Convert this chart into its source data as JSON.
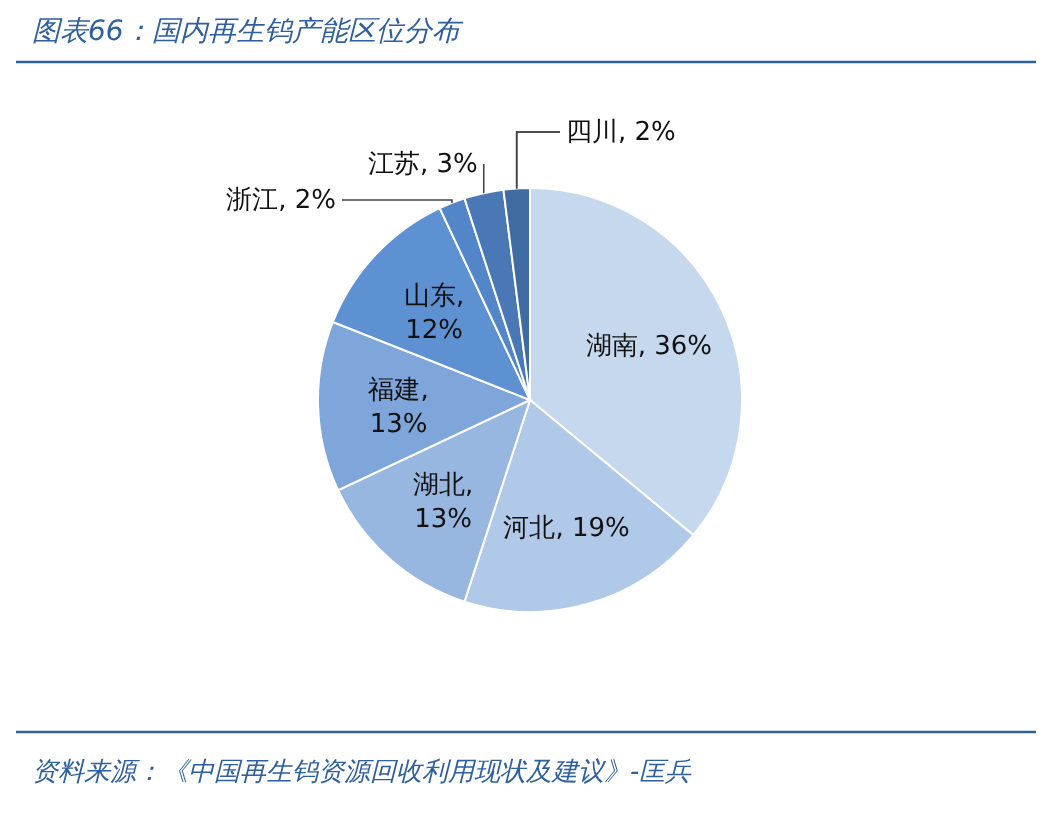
{
  "chart_data": {
    "type": "pie",
    "title": "图表66：国内再生钨产能区位分布",
    "categories": [
      "湖南",
      "河北",
      "湖北",
      "福建",
      "山东",
      "浙江",
      "江苏",
      "四川"
    ],
    "values": [
      36,
      19,
      13,
      13,
      12,
      2,
      3,
      2
    ],
    "colors": [
      "#c6d8ee",
      "#b1c9e9",
      "#97b6e0",
      "#7fa6da",
      "#5e91d2",
      "#5386c8",
      "#4a78b6",
      "#3f6aa2"
    ],
    "data_labels": true,
    "value_labels": [
      ", 36%",
      ", 19%",
      ", 13%",
      ", 13%",
      ", 12%",
      ", 2%",
      ", 3%",
      ", 2%"
    ],
    "annotations": [
      "资料来源：《中国再生钨资源回收利用现状及建议》-匡兵"
    ]
  }
}
